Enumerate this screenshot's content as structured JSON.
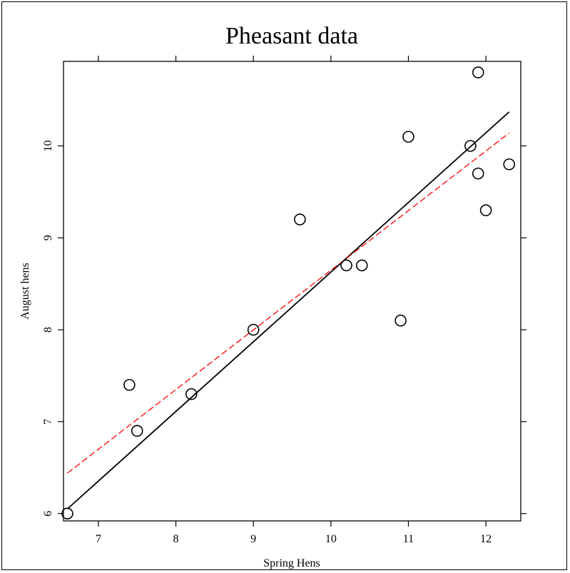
{
  "chart_data": {
    "type": "scatter",
    "title": "Pheasant data",
    "xlabel": "Spring Hens",
    "ylabel": "August hens",
    "xlim": [
      6.55,
      12.45
    ],
    "ylim": [
      5.92,
      10.92
    ],
    "xticks": [
      7,
      8,
      9,
      10,
      11,
      12
    ],
    "yticks": [
      6,
      7,
      8,
      9,
      10
    ],
    "grid": false,
    "points": [
      {
        "x": 6.6,
        "y": 6.0
      },
      {
        "x": 7.4,
        "y": 7.4
      },
      {
        "x": 7.5,
        "y": 6.9
      },
      {
        "x": 8.2,
        "y": 7.3
      },
      {
        "x": 9.0,
        "y": 8.0
      },
      {
        "x": 9.6,
        "y": 9.2
      },
      {
        "x": 10.2,
        "y": 8.7
      },
      {
        "x": 10.4,
        "y": 8.7
      },
      {
        "x": 10.9,
        "y": 8.1
      },
      {
        "x": 11.0,
        "y": 10.1
      },
      {
        "x": 11.8,
        "y": 10.0
      },
      {
        "x": 11.9,
        "y": 10.8
      },
      {
        "x": 11.9,
        "y": 9.7
      },
      {
        "x": 12.0,
        "y": 9.3
      },
      {
        "x": 12.3,
        "y": 9.8
      }
    ],
    "lines": [
      {
        "x": [
          6.6,
          12.3
        ],
        "y": [
          6.05,
          10.37
        ],
        "color": "#000000",
        "style": "solid"
      },
      {
        "x": [
          6.6,
          12.3
        ],
        "y": [
          6.44,
          10.14
        ],
        "color": "#ff0000",
        "style": "dashed"
      }
    ]
  }
}
